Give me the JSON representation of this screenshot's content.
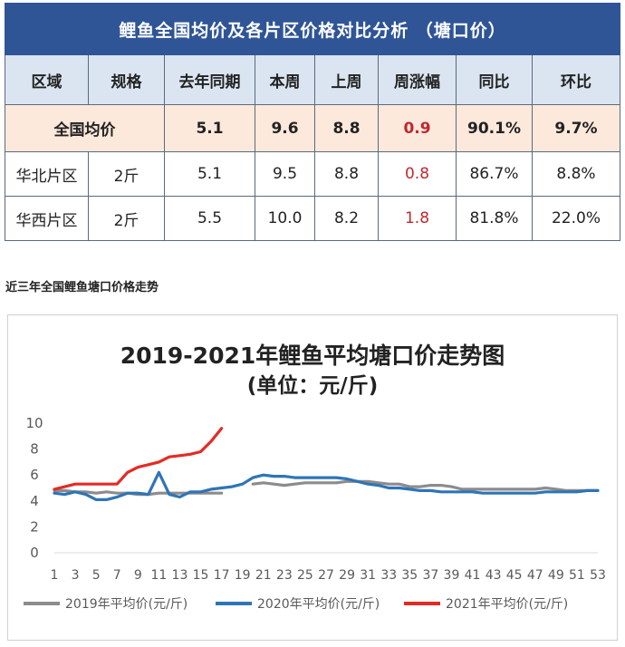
{
  "table": {
    "title": "鲤鱼全国均价及各片区价格对比分析 （塘口价）",
    "headers": [
      "区域",
      "规格",
      "去年同期",
      "本周",
      "上周",
      "周涨幅",
      "同比",
      "环比"
    ],
    "national": {
      "label": "全国均价",
      "last_year": "5.1",
      "this_week": "9.6",
      "last_week": "8.8",
      "weekly_change": "0.9",
      "yoy": "90.1%",
      "mom": "9.7%"
    },
    "rows": [
      {
        "region": "华北片区",
        "spec": "2斤",
        "last_year": "5.1",
        "this_week": "9.5",
        "last_week": "8.8",
        "weekly_change": "0.8",
        "yoy": "86.7%",
        "mom": "8.8%"
      },
      {
        "region": "华西片区",
        "spec": "2斤",
        "last_year": "5.5",
        "this_week": "10.0",
        "last_week": "8.2",
        "weekly_change": "1.8",
        "yoy": "81.8%",
        "mom": "22.0%"
      }
    ]
  },
  "section_heading": "近三年全国鲤鱼塘口价格走势",
  "chart_data": {
    "type": "line",
    "title": "2019-2021年鲤鱼平均塘口价走势图",
    "subtitle": "(单位：元/斤)",
    "ylim": [
      0,
      10
    ],
    "yticks": [
      0,
      2,
      4,
      6,
      8,
      10
    ],
    "xticks": [
      1,
      3,
      5,
      7,
      9,
      11,
      13,
      15,
      17,
      19,
      21,
      23,
      25,
      27,
      29,
      31,
      33,
      35,
      37,
      39,
      41,
      43,
      45,
      47,
      49,
      51,
      53
    ],
    "xlim": [
      1,
      53
    ],
    "grid": false,
    "legend_position": "bottom",
    "series": [
      {
        "name": "2019年平均价(元/斤)",
        "color": "#8c8c8c",
        "x": [
          1,
          2,
          3,
          4,
          5,
          6,
          7,
          8,
          9,
          10,
          11,
          12,
          13,
          14,
          15,
          16,
          17,
          18,
          19,
          20,
          21,
          22,
          23,
          24,
          25,
          26,
          27,
          28,
          29,
          30,
          31,
          32,
          33,
          34,
          35,
          36,
          37,
          38,
          39,
          40,
          41,
          42,
          43,
          44,
          45,
          46,
          47,
          48,
          49,
          50,
          51,
          52,
          53
        ],
        "values": [
          4.8,
          4.8,
          4.7,
          4.7,
          4.6,
          4.7,
          4.6,
          4.6,
          4.5,
          4.5,
          4.6,
          4.6,
          4.6,
          4.6,
          4.6,
          4.6,
          4.6,
          null,
          null,
          5.3,
          5.4,
          5.3,
          5.2,
          5.3,
          5.4,
          5.4,
          5.4,
          5.4,
          5.5,
          5.5,
          5.5,
          5.4,
          5.3,
          5.3,
          5.1,
          5.1,
          5.2,
          5.2,
          5.1,
          4.9,
          4.9,
          4.9,
          4.9,
          4.9,
          4.9,
          4.9,
          4.9,
          5.0,
          4.9,
          4.8,
          4.8,
          4.8,
          4.8
        ]
      },
      {
        "name": "2020年平均价(元/斤)",
        "color": "#2e75b6",
        "x": [
          1,
          2,
          3,
          4,
          5,
          6,
          7,
          8,
          9,
          10,
          11,
          12,
          13,
          14,
          15,
          16,
          17,
          18,
          19,
          20,
          21,
          22,
          23,
          24,
          25,
          26,
          27,
          28,
          29,
          30,
          31,
          32,
          33,
          34,
          35,
          36,
          37,
          38,
          39,
          40,
          41,
          42,
          43,
          44,
          45,
          46,
          47,
          48,
          49,
          50,
          51,
          52,
          53
        ],
        "values": [
          4.6,
          4.5,
          4.7,
          4.5,
          4.1,
          4.1,
          4.3,
          4.6,
          4.6,
          4.5,
          6.2,
          4.5,
          4.3,
          4.7,
          4.7,
          4.9,
          5.0,
          5.1,
          5.3,
          5.8,
          6.0,
          5.9,
          5.9,
          5.8,
          5.8,
          5.8,
          5.8,
          5.8,
          5.7,
          5.5,
          5.3,
          5.2,
          5.0,
          5.0,
          4.9,
          4.8,
          4.8,
          4.7,
          4.7,
          4.7,
          4.7,
          4.6,
          4.6,
          4.6,
          4.6,
          4.6,
          4.6,
          4.7,
          4.7,
          4.7,
          4.7,
          4.8,
          4.8
        ]
      },
      {
        "name": "2021年平均价(元/斤)",
        "color": "#e32b25",
        "x": [
          1,
          2,
          3,
          4,
          5,
          6,
          7,
          8,
          9,
          10,
          11,
          12,
          13,
          14,
          15,
          16,
          17
        ],
        "values": [
          4.9,
          5.1,
          5.3,
          5.3,
          5.3,
          5.3,
          5.3,
          6.2,
          6.6,
          6.8,
          7.0,
          7.4,
          7.5,
          7.6,
          7.8,
          8.6,
          9.6
        ]
      }
    ]
  }
}
